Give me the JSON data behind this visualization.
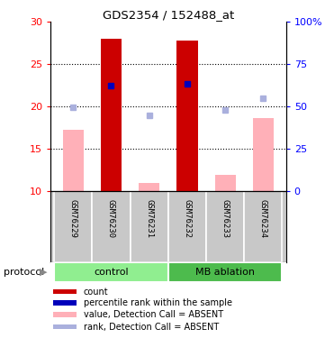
{
  "title": "GDS2354 / 152488_at",
  "samples": [
    "GSM76229",
    "GSM76230",
    "GSM76231",
    "GSM76232",
    "GSM76233",
    "GSM76234"
  ],
  "groups": [
    "control",
    "control",
    "control",
    "MB ablation",
    "MB ablation",
    "MB ablation"
  ],
  "group_colors": {
    "control": "#90ee90",
    "MB ablation": "#4dbb4d"
  },
  "ylim_left": [
    10,
    30
  ],
  "ylim_right": [
    0,
    100
  ],
  "yticks_left": [
    10,
    15,
    20,
    25,
    30
  ],
  "yticks_right": [
    0,
    25,
    50,
    75,
    100
  ],
  "yticklabels_right": [
    "0",
    "25",
    "50",
    "75",
    "100%"
  ],
  "red_bars": {
    "GSM76229": null,
    "GSM76230": 28.0,
    "GSM76231": null,
    "GSM76232": 27.8,
    "GSM76233": null,
    "GSM76234": null
  },
  "pink_bars": {
    "GSM76229": 17.2,
    "GSM76230": null,
    "GSM76231": 11.0,
    "GSM76232": null,
    "GSM76233": 11.9,
    "GSM76234": 18.6
  },
  "blue_squares": {
    "GSM76230": 22.5,
    "GSM76232": 22.7
  },
  "light_blue_squares": {
    "GSM76229": 19.9,
    "GSM76231": 18.9,
    "GSM76233": 19.6,
    "GSM76234": 21.0
  },
  "red_color": "#cc0000",
  "pink_color": "#ffb0b8",
  "blue_color": "#0000bb",
  "light_blue_color": "#aab0dd",
  "legend_items": [
    {
      "label": "count",
      "color": "#cc0000"
    },
    {
      "label": "percentile rank within the sample",
      "color": "#0000bb"
    },
    {
      "label": "value, Detection Call = ABSENT",
      "color": "#ffb0b8"
    },
    {
      "label": "rank, Detection Call = ABSENT",
      "color": "#aab0dd"
    }
  ]
}
